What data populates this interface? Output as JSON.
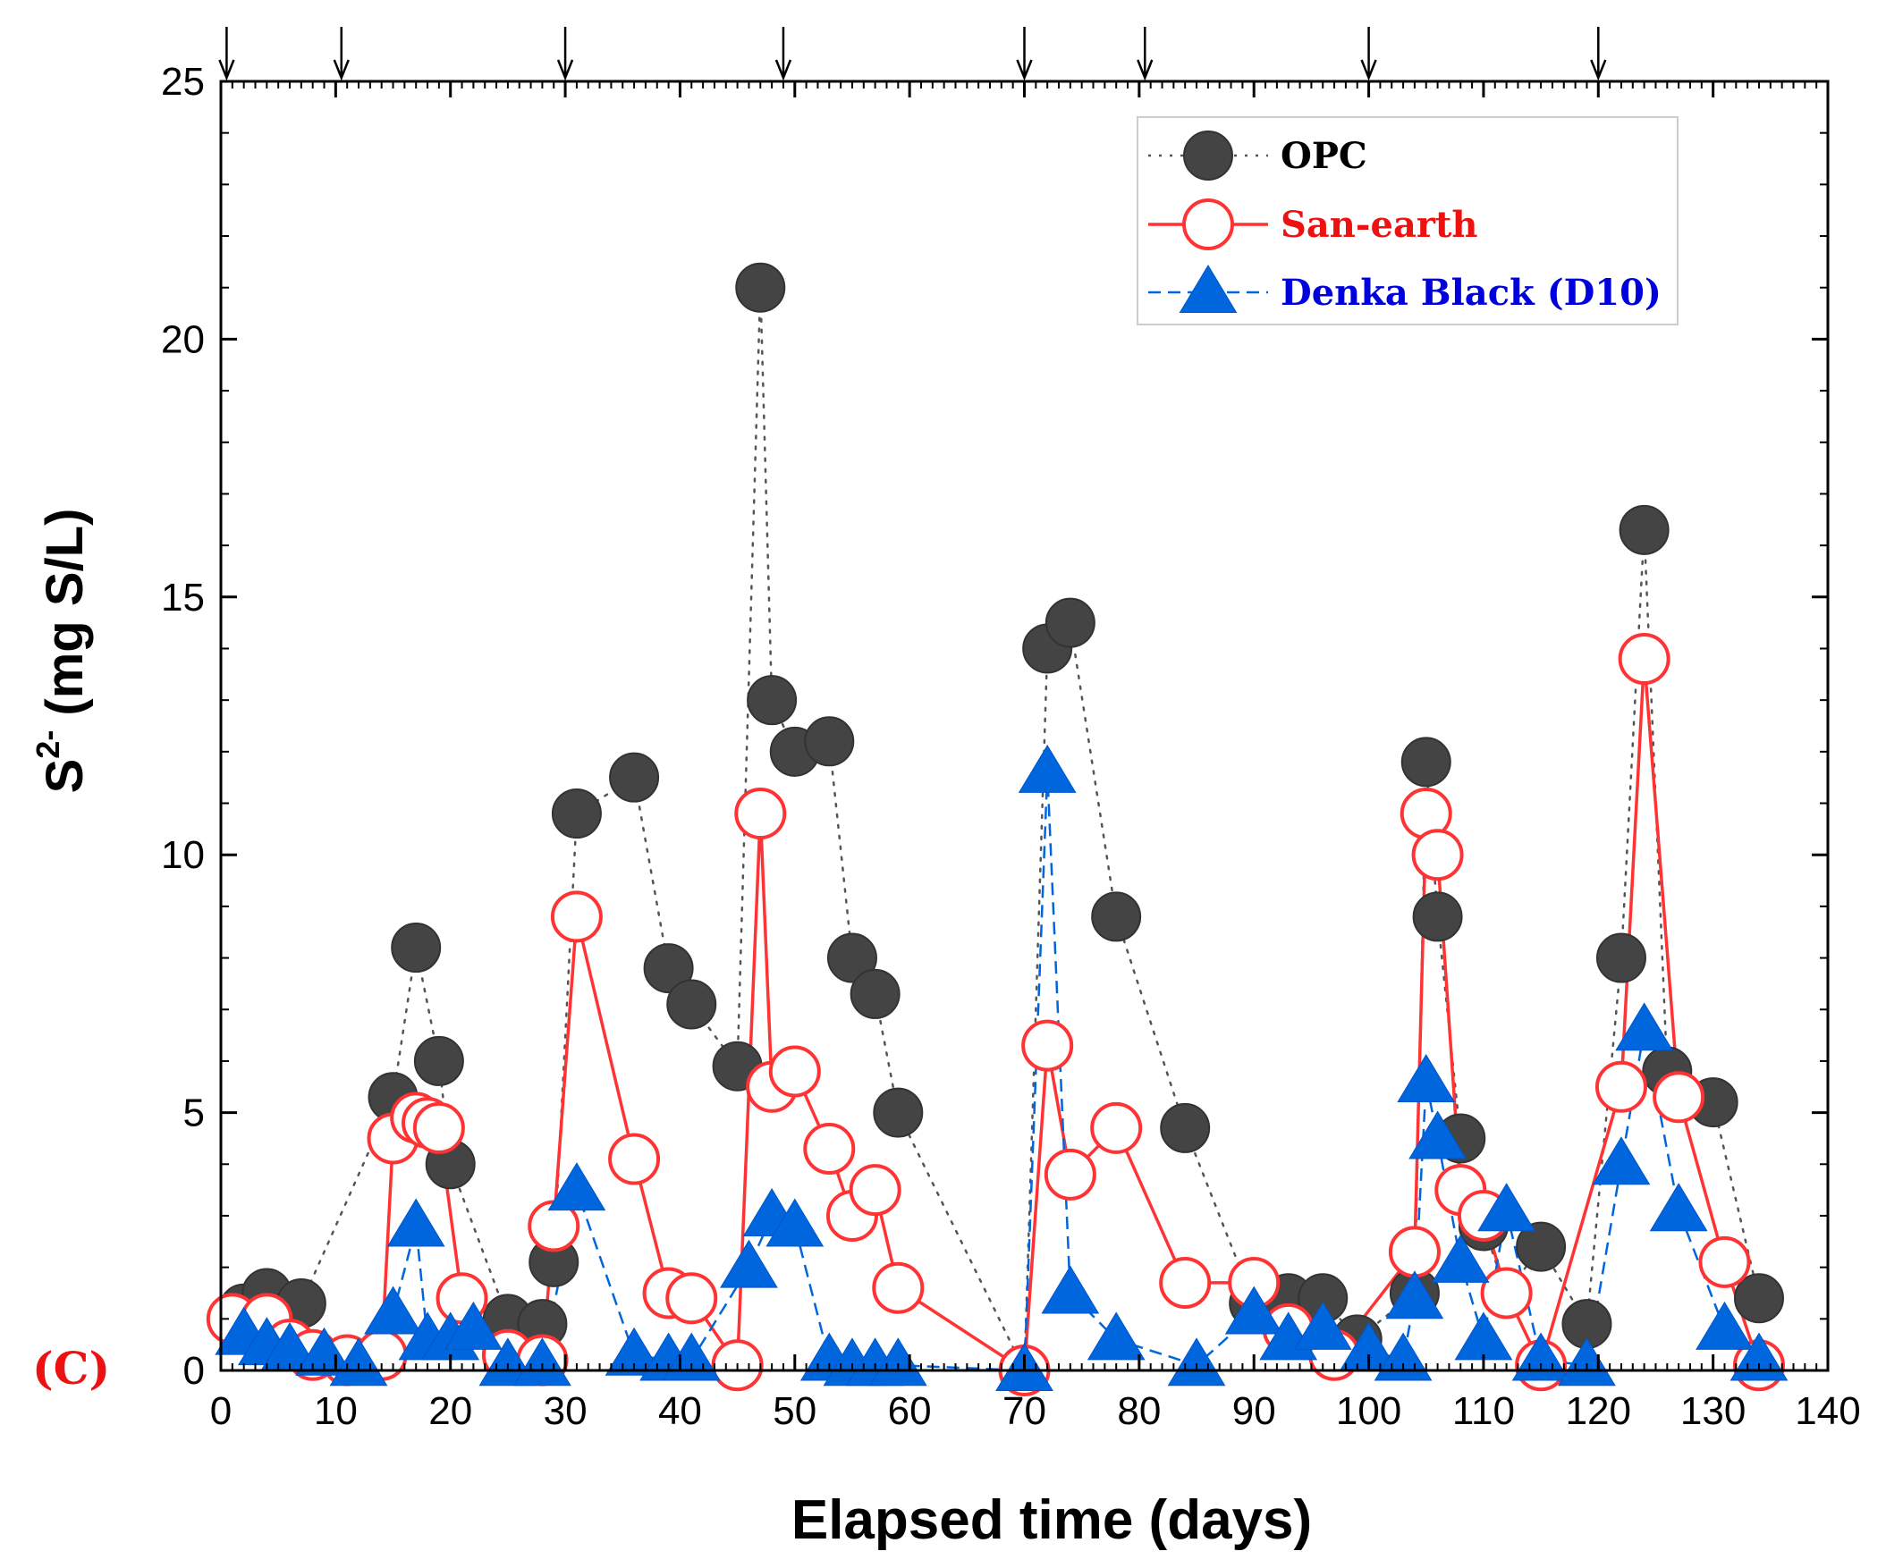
{
  "chart_data": {
    "type": "scatter",
    "panel_label": "(C)",
    "xlabel": "Elapsed time (days)",
    "ylabel_main": "S",
    "ylabel_sup": "2-",
    "ylabel_rest": " (mg S/L)",
    "xlim": [
      0,
      140
    ],
    "ylim": [
      0,
      25
    ],
    "xticks": [
      0,
      10,
      20,
      30,
      40,
      50,
      60,
      70,
      80,
      90,
      100,
      110,
      120,
      130,
      140
    ],
    "yticks": [
      0,
      5,
      10,
      15,
      20,
      25
    ],
    "grid": false,
    "legend_position": "top-right",
    "dosing_arrows_x": [
      0.5,
      10.5,
      30,
      49,
      70,
      80.5,
      100,
      120
    ],
    "series": [
      {
        "name": "OPC",
        "marker": "filled-circle",
        "line": "dotted",
        "color": "#444444",
        "x": [
          2,
          4,
          7,
          15,
          17,
          19,
          20,
          25,
          28,
          29,
          31,
          36,
          39,
          41,
          45,
          47,
          48,
          50,
          53,
          55,
          57,
          59,
          70,
          72,
          74,
          78,
          84,
          90,
          93,
          96,
          99,
          104,
          105,
          106,
          108,
          110,
          112,
          115,
          119,
          122,
          124,
          126,
          130,
          134
        ],
        "y": [
          1.2,
          1.5,
          1.3,
          5.3,
          8.2,
          6.0,
          4.0,
          1.0,
          0.9,
          2.1,
          10.8,
          11.5,
          7.8,
          7.1,
          5.9,
          21.0,
          13.0,
          12.0,
          12.2,
          8.0,
          7.3,
          5.0,
          0.0,
          14.0,
          14.5,
          8.8,
          4.7,
          1.3,
          1.4,
          1.4,
          0.6,
          1.5,
          11.8,
          8.8,
          4.5,
          2.8,
          1.5,
          2.4,
          0.9,
          8.0,
          16.3,
          5.8,
          5.2,
          1.4
        ]
      },
      {
        "name": "San-earth",
        "marker": "open-circle",
        "line": "solid",
        "color": "#ff3333",
        "x": [
          1,
          4,
          6,
          8,
          11,
          14,
          15,
          17,
          18,
          19,
          21,
          25,
          28,
          29,
          31,
          36,
          39,
          41,
          45,
          47,
          48,
          50,
          53,
          55,
          57,
          59,
          70,
          72,
          74,
          78,
          84,
          90,
          93,
          97,
          104,
          105,
          106,
          108,
          110,
          112,
          115,
          122,
          124,
          127,
          131,
          134
        ],
        "y": [
          1.0,
          1.0,
          0.5,
          0.3,
          0.2,
          0.3,
          4.5,
          4.9,
          4.8,
          4.7,
          1.4,
          0.3,
          0.2,
          2.8,
          8.8,
          4.1,
          1.5,
          1.4,
          0.1,
          10.8,
          5.5,
          5.8,
          4.3,
          3.0,
          3.5,
          1.6,
          0.0,
          6.3,
          3.8,
          4.7,
          1.7,
          1.7,
          0.8,
          0.3,
          2.3,
          10.8,
          10.0,
          3.5,
          3.0,
          1.5,
          0.1,
          5.5,
          13.8,
          5.3,
          2.1,
          0.1
        ]
      },
      {
        "name": "Denka Black (D10)",
        "marker": "filled-triangle",
        "line": "dashed",
        "color": "#0066dd",
        "x": [
          2,
          4,
          6,
          9,
          12,
          15,
          17,
          18,
          20,
          22,
          25,
          28,
          31,
          36,
          39,
          41,
          46,
          48,
          50,
          53,
          55,
          57,
          59,
          70,
          72,
          74,
          78,
          85,
          90,
          93,
          96,
          100,
          103,
          104,
          105,
          106,
          108,
          110,
          112,
          115,
          119,
          122,
          124,
          127,
          131,
          134
        ],
        "y": [
          0.7,
          0.5,
          0.4,
          0.3,
          0.1,
          1.1,
          2.8,
          0.6,
          0.6,
          0.8,
          0.1,
          0.1,
          3.5,
          0.3,
          0.2,
          0.2,
          2.0,
          3.0,
          2.8,
          0.2,
          0.1,
          0.1,
          0.1,
          0.0,
          11.6,
          1.5,
          0.6,
          0.1,
          1.1,
          0.6,
          0.8,
          0.4,
          0.2,
          1.4,
          5.6,
          4.5,
          2.1,
          0.6,
          3.1,
          0.2,
          0.1,
          4.0,
          6.6,
          3.1,
          0.8,
          0.2
        ]
      }
    ]
  }
}
